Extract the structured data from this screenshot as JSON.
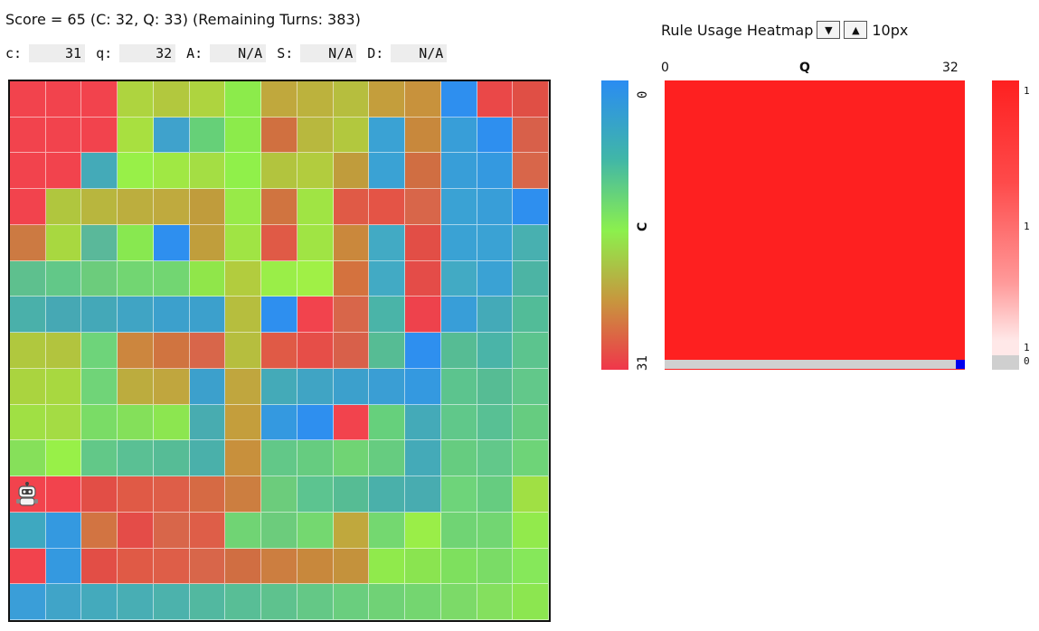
{
  "header": {
    "score_text": "Score = 65 (C: 32, Q: 33) (Remaining Turns: 383)"
  },
  "params": [
    {
      "label": "c:",
      "value": "31"
    },
    {
      "label": "q:",
      "value": "32"
    },
    {
      "label": "A:",
      "value": "N/A"
    },
    {
      "label": "S:",
      "value": "N/A"
    },
    {
      "label": "D:",
      "value": "N/A"
    }
  ],
  "grid": {
    "rows": 15,
    "cols": 15,
    "agent_icon": "robot-icon",
    "agent_row": 11,
    "agent_col": 0,
    "colors": [
      [
        "#f2434d",
        "#f2434d",
        "#f2434d",
        "#aed43f",
        "#b2c83e",
        "#aed43f",
        "#8ceb4b",
        "#c0a83d",
        "#bcb23d",
        "#b6be3e",
        "#c49e3c",
        "#c8923c",
        "#2e8fef",
        "#ea4848",
        "#e04f45"
      ],
      [
        "#f2434d",
        "#f2434d",
        "#f2434d",
        "#a8e040",
        "#3fa2cc",
        "#66d078",
        "#8ceb4b",
        "#d07040",
        "#b8b83e",
        "#b2c83e",
        "#3aa2d4",
        "#c8883c",
        "#389ed8",
        "#2e8fef",
        "#d8604a"
      ],
      [
        "#f2434d",
        "#f2434d",
        "#44aab8",
        "#98f048",
        "#a0e844",
        "#a4de44",
        "#90f04a",
        "#b2c43e",
        "#b2cc3e",
        "#c09c3c",
        "#3aa2d4",
        "#d06e42",
        "#389ed8",
        "#3499e0",
        "#d8664a"
      ],
      [
        "#f2434d",
        "#b0c63e",
        "#b8b63e",
        "#bcae3e",
        "#bfaa3e",
        "#c09c3c",
        "#98ea48",
        "#d07440",
        "#a0e444",
        "#e05a46",
        "#e45446",
        "#d8664a",
        "#3aa2d4",
        "#389ed8",
        "#2e8fef"
      ],
      [
        "#cc7a42",
        "#a8d840",
        "#5ab89a",
        "#88e850",
        "#2e8fef",
        "#c09e3c",
        "#a0e444",
        "#e05a46",
        "#a0e444",
        "#ca883c",
        "#42aac4",
        "#e24e46",
        "#3aa2d4",
        "#3aa2d4",
        "#48b0b0"
      ],
      [
        "#5ec08e",
        "#62c888",
        "#6ccc7c",
        "#72d672",
        "#72d672",
        "#90e64a",
        "#b2cc3e",
        "#9aee48",
        "#a0f046",
        "#d4723e",
        "#42aac4",
        "#e44c48",
        "#42aac4",
        "#3aa2d4",
        "#4cb4a4"
      ],
      [
        "#4ab0aa",
        "#46a8b4",
        "#44a8b8",
        "#40a4c4",
        "#3ca0cc",
        "#3ca0cc",
        "#b6be3e",
        "#2e8fef",
        "#f2434d",
        "#d8664a",
        "#4ab4a8",
        "#ee424c",
        "#389ed8",
        "#44aab8",
        "#52bc98"
      ],
      [
        "#b0c83e",
        "#b2c43e",
        "#6ed47a",
        "#cc863e",
        "#d07440",
        "#d8664a",
        "#b6be3e",
        "#e05a46",
        "#e64e48",
        "#d8604a",
        "#56bc94",
        "#2e8fef",
        "#56bc94",
        "#4ab4a8",
        "#5cc48e"
      ],
      [
        "#aad43f",
        "#a8d840",
        "#70d478",
        "#bcac3e",
        "#c0a63e",
        "#3ca0cc",
        "#c0a63e",
        "#44aab8",
        "#40a4c4",
        "#3ca0cc",
        "#3a9ed4",
        "#3499e0",
        "#5cc48e",
        "#56bc94",
        "#62c88a"
      ],
      [
        "#a0e044",
        "#a4dc44",
        "#7adc66",
        "#84e05a",
        "#8ce650",
        "#48acb0",
        "#c49e3c",
        "#3499e0",
        "#2e8fef",
        "#f2434d",
        "#66d07c",
        "#44aab8",
        "#60c88a",
        "#58c094",
        "#66cc80"
      ],
      [
        "#86e05a",
        "#98f048",
        "#62c888",
        "#5ac094",
        "#56bc96",
        "#4ab0aa",
        "#c8903c",
        "#62c888",
        "#66cc80",
        "#70d474",
        "#66cc80",
        "#44aab8",
        "#66cc80",
        "#62c88a",
        "#6ed478"
      ],
      [
        "#f2434d",
        "#f2434d",
        "#e24e46",
        "#e05a46",
        "#de5e48",
        "#d66a44",
        "#cc7e40",
        "#6ccc7c",
        "#5cc490",
        "#56bc94",
        "#4ab0aa",
        "#48acb0",
        "#6ed47a",
        "#66cc80",
        "#a0e044"
      ],
      [
        "#3ea8c0",
        "#3499e0",
        "#d27442",
        "#e44c48",
        "#d8664a",
        "#de5e48",
        "#70d474",
        "#6ccc7c",
        "#74d870",
        "#c0a83d",
        "#74d870",
        "#9aee48",
        "#70d474",
        "#72d672",
        "#92ea4c"
      ],
      [
        "#f2434d",
        "#3499e0",
        "#e24e46",
        "#e05a46",
        "#de5e48",
        "#d8664a",
        "#d06e42",
        "#cc7e40",
        "#c8883c",
        "#c4923c",
        "#90ea4c",
        "#8ae450",
        "#7ee05e",
        "#7adc66",
        "#86e85a"
      ],
      [
        "#3a9ed8",
        "#40a4c8",
        "#44aabc",
        "#48aeb4",
        "#4cb2ac",
        "#52b8a0",
        "#58be96",
        "#5ec28e",
        "#64c886",
        "#6ace7e",
        "#70d276",
        "#74d670",
        "#7cda68",
        "#84e05e",
        "#8ce650"
      ]
    ]
  },
  "colorbar": {
    "axis_label": "C",
    "top_label": "0",
    "bottom_label": "31"
  },
  "heatmap": {
    "title": "Rule Usage Heatmap",
    "down_button": "▼",
    "up_button": "▲",
    "size_value": "10px",
    "x_axis_label": "Q",
    "x_start": "0",
    "x_end": "32",
    "fill_color": "#fe2020",
    "marker_color": "#0000ee"
  },
  "scale": {
    "labels": [
      "1",
      "1",
      "1",
      "0"
    ]
  }
}
